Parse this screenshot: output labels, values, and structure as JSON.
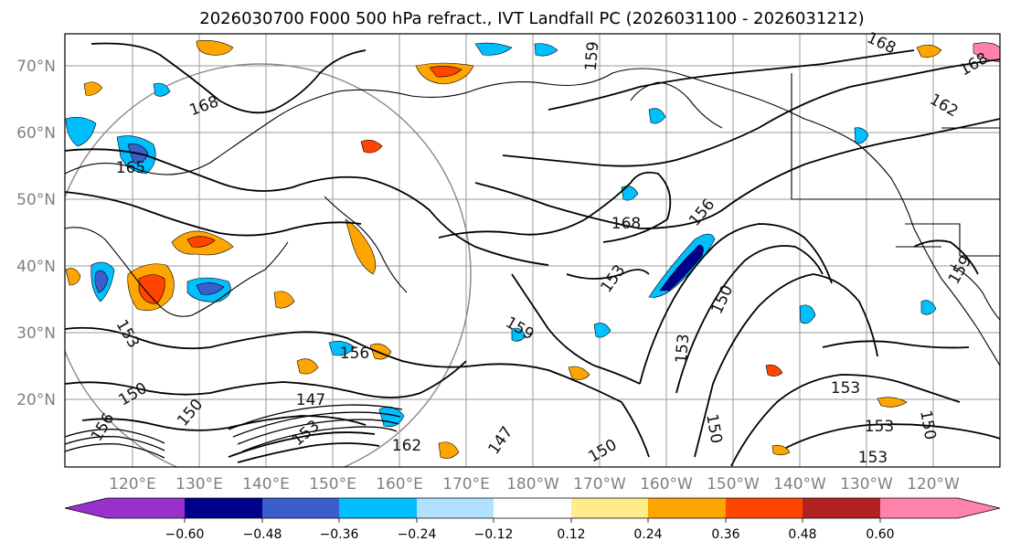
{
  "title": "2026030700 F000 500 hPa refract., IVT Landfall PC (2026031100 - 2026031212)",
  "map": {
    "lat_ticks": [
      "70°N",
      "60°N",
      "50°N",
      "40°N",
      "30°N",
      "20°N"
    ],
    "lon_ticks": [
      "120°E",
      "130°E",
      "140°E",
      "150°E",
      "160°E",
      "170°E",
      "180°W",
      "170°W",
      "160°W",
      "150°W",
      "140°W",
      "130°W",
      "120°W"
    ],
    "contour_labels": [
      "168",
      "165",
      "168",
      "168",
      "162",
      "168",
      "156",
      "153",
      "159",
      "150",
      "153",
      "159",
      "153",
      "156",
      "150",
      "147",
      "150",
      "153",
      "150",
      "150",
      "153",
      "150",
      "156",
      "153",
      "162",
      "147",
      "153",
      "159"
    ]
  },
  "colorbar": {
    "tick_labels": [
      "−0.60",
      "−0.48",
      "−0.36",
      "−0.24",
      "−0.12",
      "0.12",
      "0.24",
      "0.36",
      "0.48",
      "0.60"
    ],
    "colors": [
      "#9932CC",
      "#00008B",
      "#3A5FCD",
      "#00BFFF",
      "#B0E2FF",
      "#FFFFFF",
      "#FFEC8B",
      "#FFA500",
      "#FF4500",
      "#B22222",
      "#FF82AB"
    ]
  }
}
